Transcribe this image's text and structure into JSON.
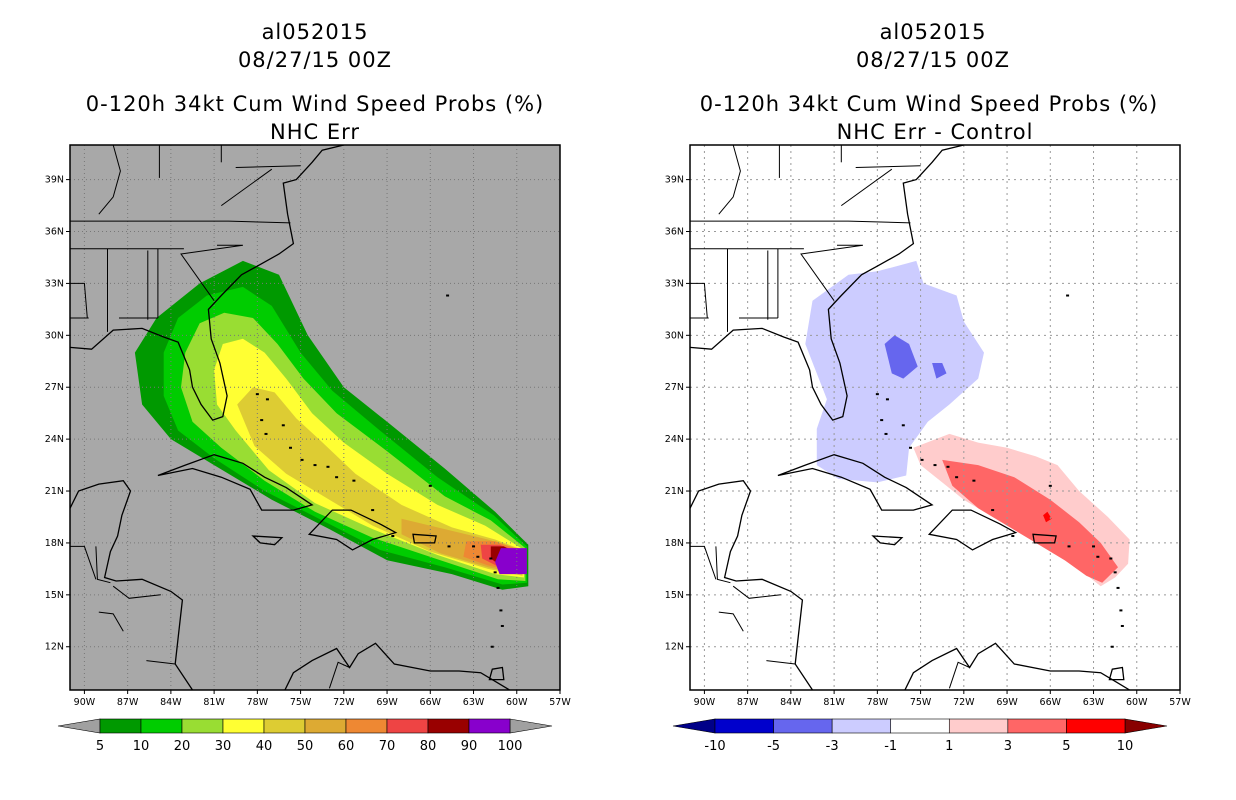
{
  "left_panel": {
    "storm_id": "al052015",
    "datetime": "08/27/15 00Z",
    "product": "0-120h 34kt Cum Wind Speed Probs (%)",
    "subtitle": "NHC Err",
    "colorbar": {
      "colors": [
        "#009900",
        "#00cc00",
        "#99dd33",
        "#ffff33",
        "#ddcc33",
        "#ddaa33",
        "#ee8833",
        "#ee4444",
        "#990000",
        "#8800cc"
      ],
      "ticks": [
        "5",
        "10",
        "20",
        "30",
        "40",
        "50",
        "60",
        "70",
        "80",
        "90",
        "100"
      ],
      "arrow_color": "#a0a0a0"
    },
    "background_color": "#a8a8a8"
  },
  "right_panel": {
    "storm_id": "al052015",
    "datetime": "08/27/15 00Z",
    "product": "0-120h 34kt Cum Wind Speed Probs (%)",
    "subtitle": "NHC Err - Control",
    "colorbar": {
      "colors": [
        "#0000cc",
        "#6666ee",
        "#ccccff",
        "#ffffff",
        "#ffcccc",
        "#ff6666",
        "#ff0000"
      ],
      "ticks": [
        "-10",
        "-5",
        "-3",
        "-1",
        "1",
        "3",
        "5",
        "10"
      ],
      "left_arrow_color": "#000088",
      "right_arrow_color": "#880000"
    },
    "background_color": "#ffffff"
  },
  "axes": {
    "lat_labels": [
      "39N",
      "36N",
      "33N",
      "30N",
      "27N",
      "24N",
      "21N",
      "18N",
      "15N",
      "12N"
    ],
    "lon_labels": [
      "90W",
      "87W",
      "84W",
      "81W",
      "78W",
      "75W",
      "72W",
      "69W",
      "66W",
      "63W",
      "60W",
      "57W"
    ],
    "lat_values": [
      39,
      36,
      33,
      30,
      27,
      24,
      21,
      18,
      15,
      12
    ],
    "lon_values": [
      -90,
      -87,
      -84,
      -81,
      -78,
      -75,
      -72,
      -69,
      -66,
      -63,
      -60,
      -57
    ],
    "lon_range": [
      -91,
      -57
    ],
    "lat_range": [
      9.5,
      41
    ]
  }
}
